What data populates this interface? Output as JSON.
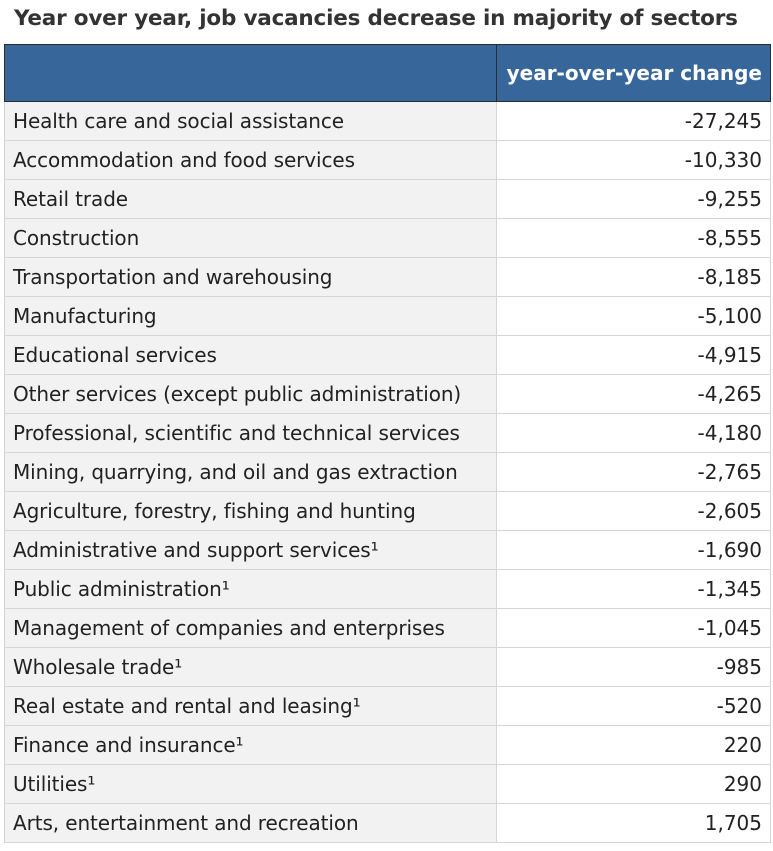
{
  "chart_data": {
    "type": "table",
    "title": "Year over year, job vacancies decrease in majority of sectors",
    "columns": [
      "",
      "year-over-year change"
    ],
    "rows": [
      {
        "sector": "Health care and social assistance",
        "value": "-27,245"
      },
      {
        "sector": "Accommodation and food services",
        "value": "-10,330"
      },
      {
        "sector": "Retail trade",
        "value": "-9,255"
      },
      {
        "sector": "Construction",
        "value": "-8,555"
      },
      {
        "sector": "Transportation and warehousing",
        "value": "-8,185"
      },
      {
        "sector": "Manufacturing",
        "value": "-5,100"
      },
      {
        "sector": "Educational services",
        "value": "-4,915"
      },
      {
        "sector": "Other services (except public administration)",
        "value": "-4,265"
      },
      {
        "sector": "Professional, scientific and technical services",
        "value": "-4,180"
      },
      {
        "sector": "Mining, quarrying, and oil and gas extraction",
        "value": "-2,765"
      },
      {
        "sector": "Agriculture, forestry, fishing and hunting",
        "value": "-2,605"
      },
      {
        "sector": "Administrative and support services¹",
        "value": "-1,690"
      },
      {
        "sector": "Public administration¹",
        "value": "-1,345"
      },
      {
        "sector": "Management of companies and enterprises",
        "value": "-1,045"
      },
      {
        "sector": "Wholesale trade¹",
        "value": "-985"
      },
      {
        "sector": "Real estate and rental and leasing¹",
        "value": "-520"
      },
      {
        "sector": "Finance and insurance¹",
        "value": "220"
      },
      {
        "sector": "Utilities¹",
        "value": "290"
      },
      {
        "sector": "Arts, entertainment and recreation",
        "value": "1,705"
      }
    ],
    "colors": {
      "header_bg": "#37669b",
      "header_text": "#ffffff",
      "category_bg": "#f2f2f2",
      "value_bg": "#ffffff"
    }
  }
}
